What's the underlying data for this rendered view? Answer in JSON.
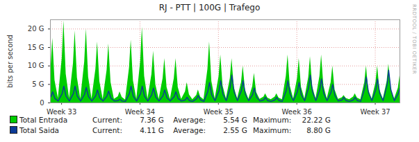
{
  "chart_data": {
    "type": "line",
    "title": "RJ - PTT | 100G | Trafego",
    "y_label": "bits per second",
    "watermark": "RRDTOOL / TOBI OETIKER",
    "unit": "G",
    "grid": true,
    "xlim": [
      -1,
      30.2
    ],
    "xticks": [
      {
        "value": 0,
        "label": "Week 33"
      },
      {
        "value": 7,
        "label": "Week 34"
      },
      {
        "value": 14,
        "label": "Week 35"
      },
      {
        "value": 21,
        "label": "Week 36"
      },
      {
        "value": 28,
        "label": "Week 37"
      }
    ],
    "ylim": [
      0,
      22.5
    ],
    "yticks": [
      0,
      {
        "value": 5,
        "label": "5 G"
      },
      {
        "value": 10,
        "label": "10 G"
      },
      {
        "value": 15,
        "label": "15 G"
      },
      {
        "value": 20,
        "label": "20 G"
      }
    ],
    "x": [
      -0.95,
      -0.8,
      -0.6,
      -0.3,
      0.05,
      0.2,
      0.4,
      0.7,
      1.05,
      1.2,
      1.4,
      1.7,
      2.05,
      2.2,
      2.4,
      2.7,
      3.05,
      3.2,
      3.4,
      3.7,
      4.05,
      4.2,
      4.4,
      4.7,
      5.05,
      5.2,
      5.4,
      5.7,
      6.05,
      6.2,
      6.4,
      6.7,
      7.05,
      7.2,
      7.4,
      7.7,
      8.05,
      8.2,
      8.4,
      8.7,
      9.05,
      9.2,
      9.4,
      9.7,
      10.05,
      10.2,
      10.4,
      10.7,
      11.05,
      11.2,
      11.4,
      11.7,
      12.05,
      12.2,
      12.4,
      12.7,
      13.05,
      13.2,
      13.4,
      13.7,
      14.05,
      14.2,
      14.4,
      14.7,
      15.05,
      15.2,
      15.4,
      15.7,
      16.05,
      16.2,
      16.4,
      16.7,
      17.05,
      17.2,
      17.4,
      17.7,
      18.05,
      18.2,
      18.4,
      18.7,
      19.05,
      19.2,
      19.4,
      19.7,
      20.05,
      20.2,
      20.4,
      20.7,
      21.05,
      21.2,
      21.4,
      21.7,
      22.05,
      22.2,
      22.4,
      22.7,
      23.05,
      23.2,
      23.4,
      23.7,
      24.05,
      24.2,
      24.4,
      24.7,
      25.05,
      25.2,
      25.4,
      25.7,
      26.05,
      26.2,
      26.4,
      26.7,
      27.05,
      27.2,
      27.4,
      27.7,
      28.05,
      28.2,
      28.4,
      28.7,
      29.05,
      29.2,
      29.4,
      29.7,
      30.05,
      30.2
    ],
    "series": [
      {
        "name": "Total Entrada",
        "type": "area",
        "color": "#00cc00",
        "stats": [
          {
            "name": "Current:",
            "value": 7.36
          },
          {
            "name": "Average:",
            "value": 5.54
          },
          {
            "name": "Maximum:",
            "value": 22.22
          }
        ],
        "values": [
          9.6,
          17.5,
          6.1,
          1.2,
          12.2,
          22.2,
          7.8,
          1.2,
          10.7,
          19.5,
          6.8,
          1.1,
          11.0,
          20.0,
          7.0,
          1.1,
          9.1,
          16.5,
          5.8,
          1.0,
          8.8,
          16.0,
          5.6,
          1.0,
          1.7,
          3.0,
          1.5,
          0.8,
          9.4,
          17.0,
          6.0,
          1.0,
          11.3,
          20.5,
          7.2,
          1.1,
          7.7,
          14.0,
          4.9,
          1.0,
          6.6,
          12.0,
          4.2,
          1.0,
          6.6,
          12.0,
          4.2,
          1.0,
          3.0,
          5.5,
          2.2,
          0.9,
          2.0,
          3.5,
          1.6,
          0.9,
          9.1,
          16.5,
          5.8,
          1.1,
          7.2,
          13.0,
          4.6,
          1.1,
          6.6,
          12.0,
          4.2,
          1.1,
          5.5,
          10.0,
          3.5,
          1.0,
          4.4,
          8.0,
          2.8,
          1.0,
          1.6,
          2.5,
          1.3,
          0.9,
          1.6,
          2.5,
          1.3,
          0.9,
          7.2,
          13.0,
          4.6,
          1.1,
          6.6,
          12.0,
          4.2,
          1.1,
          6.9,
          12.5,
          4.4,
          1.1,
          7.2,
          13.0,
          4.6,
          1.1,
          5.5,
          10.0,
          3.5,
          1.0,
          1.4,
          2.0,
          1.2,
          0.9,
          1.6,
          2.5,
          1.3,
          0.9,
          5.5,
          10.0,
          3.5,
          1.0,
          5.5,
          10.0,
          3.5,
          1.0,
          5.8,
          10.5,
          3.7,
          1.0,
          4.0,
          7.36
        ]
      },
      {
        "name": "Total Saida",
        "type": "line",
        "color": "#0c3a96",
        "stats": [
          {
            "name": "Current:",
            "value": 4.11
          },
          {
            "name": "Average:",
            "value": 2.55
          },
          {
            "name": "Maximum:",
            "value": 8.8
          }
        ],
        "values": [
          1.7,
          3.0,
          1.2,
          0.5,
          2.5,
          4.5,
          1.8,
          0.5,
          2.5,
          4.5,
          1.8,
          0.5,
          2.3,
          4.2,
          1.7,
          0.5,
          1.9,
          3.5,
          1.4,
          0.5,
          1.8,
          3.2,
          1.3,
          0.5,
          0.6,
          1.0,
          0.5,
          0.4,
          2.5,
          4.5,
          1.8,
          0.5,
          2.5,
          4.5,
          1.8,
          0.5,
          2.2,
          4.0,
          1.6,
          0.5,
          1.9,
          3.5,
          1.4,
          0.5,
          1.7,
          3.0,
          1.2,
          0.5,
          0.8,
          1.5,
          0.6,
          0.4,
          1.1,
          2.0,
          0.8,
          0.4,
          3.0,
          5.5,
          2.2,
          0.6,
          3.3,
          6.0,
          2.4,
          0.6,
          4.1,
          7.5,
          3.0,
          0.6,
          3.3,
          6.0,
          2.4,
          0.6,
          2.2,
          4.0,
          1.6,
          0.5,
          0.8,
          1.5,
          0.6,
          0.4,
          0.8,
          1.5,
          0.6,
          0.4,
          3.3,
          6.0,
          2.4,
          0.6,
          3.0,
          5.5,
          2.2,
          0.6,
          4.1,
          7.5,
          3.0,
          0.6,
          3.6,
          6.5,
          2.6,
          0.6,
          2.8,
          5.0,
          2.0,
          0.5,
          0.8,
          1.5,
          0.6,
          0.4,
          0.8,
          1.5,
          0.6,
          0.4,
          3.9,
          7.0,
          2.8,
          0.6,
          3.6,
          6.5,
          2.6,
          0.6,
          4.8,
          8.8,
          3.5,
          0.6,
          2.5,
          4.11
        ]
      }
    ]
  }
}
